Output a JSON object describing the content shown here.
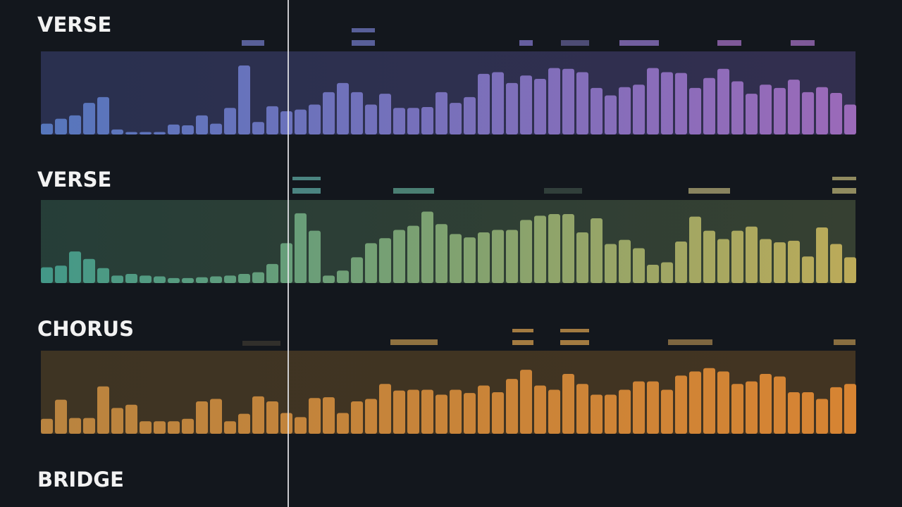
{
  "tracks": [
    {
      "label": "VERSE",
      "colors": [
        "#5a7cc6",
        "#a46fc2"
      ],
      "levels": [
        13,
        19,
        23,
        38,
        45,
        6,
        3,
        3,
        3,
        12,
        11,
        23,
        13,
        32,
        83,
        15,
        34,
        28,
        30,
        36,
        51,
        62,
        51,
        36,
        49,
        32,
        32,
        33,
        51,
        38,
        45,
        73,
        75,
        62,
        71,
        67,
        80,
        79,
        75,
        56,
        47,
        57,
        60,
        80,
        75,
        74,
        56,
        68,
        79,
        64,
        49,
        60,
        56,
        66,
        51,
        57,
        50,
        36
      ]
    },
    {
      "label": "VERSE",
      "colors": [
        "#45a08f",
        "#c8b45c"
      ],
      "levels": [
        19,
        21,
        38,
        29,
        18,
        9,
        11,
        9,
        8,
        6,
        6,
        7,
        8,
        9,
        11,
        13,
        23,
        48,
        84,
        63,
        9,
        15,
        31,
        48,
        54,
        64,
        69,
        86,
        71,
        59,
        55,
        61,
        64,
        64,
        76,
        81,
        83,
        83,
        61,
        78,
        47,
        52,
        42,
        22,
        25,
        50,
        80,
        63,
        53,
        63,
        68,
        53,
        49,
        51,
        32,
        67,
        47,
        31
      ]
    },
    {
      "label": "CHORUS",
      "colors": [
        "#c48b42",
        "#e48b34"
      ],
      "levels": [
        18,
        41,
        19,
        19,
        57,
        31,
        35,
        15,
        15,
        15,
        18,
        39,
        42,
        15,
        24,
        45,
        39,
        25,
        20,
        43,
        44,
        25,
        39,
        42,
        60,
        52,
        53,
        53,
        47,
        53,
        49,
        58,
        50,
        66,
        77,
        58,
        53,
        72,
        60,
        47,
        47,
        53,
        63,
        63,
        53,
        70,
        75,
        79,
        75,
        60,
        63,
        72,
        69,
        50,
        50,
        42,
        56,
        60
      ]
    },
    {
      "label": "BRIDGE"
    }
  ]
}
